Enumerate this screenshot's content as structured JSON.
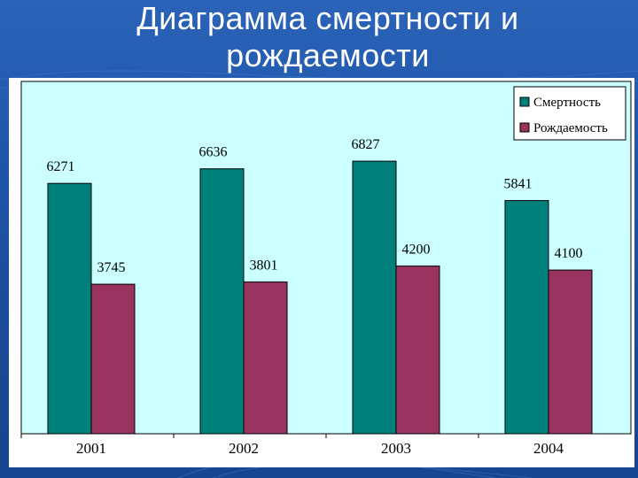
{
  "slide": {
    "title_line1": "Диаграмма смертности и",
    "title_line2": "рождаемости",
    "background_color": "#1d4d9c",
    "title_color": "#ffffff"
  },
  "chart_data": {
    "type": "bar",
    "title": "",
    "xlabel": "",
    "ylabel": "",
    "categories": [
      "2001",
      "2002",
      "2003",
      "2004"
    ],
    "series": [
      {
        "name": "Смертность",
        "values": [
          6271,
          6636,
          6827,
          5841
        ],
        "labels": [
          "6271",
          "6636",
          "6827",
          "5841"
        ],
        "color": "#00807a"
      },
      {
        "name": "Рождаемость",
        "values": [
          3745,
          3801,
          4200,
          4100
        ],
        "labels": [
          "3745",
          "3801",
          "4200",
          "4100"
        ],
        "color": "#99335f"
      }
    ],
    "ylim": [
      0,
      8000
    ],
    "grid": false,
    "legend_position": "top-right",
    "plot_background": "#ccffff"
  }
}
